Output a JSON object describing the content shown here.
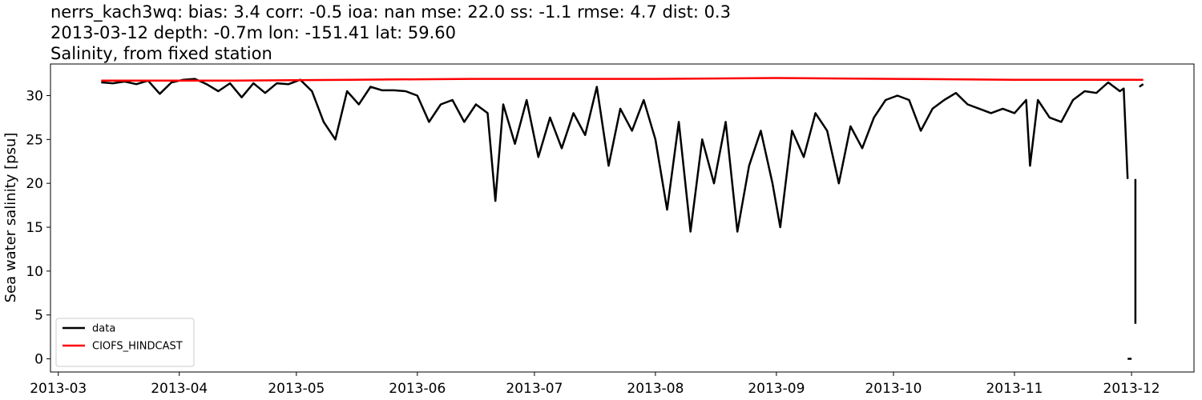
{
  "chart_data": {
    "type": "line",
    "title": [
      "nerrs_kach3wq: bias: 3.4  corr: -0.5  ioa: nan  mse: 22.0  ss: -1.1  rmse: 4.7  dist: 0.3",
      "2013-03-12 depth: -0.7m lon: -151.41 lat: 59.60",
      "Salinity, from fixed station"
    ],
    "ylabel": "Sea water salinity [psu]",
    "xlim": [
      "2013-02-27",
      "2013-12-17"
    ],
    "xticks": [
      "2013-03",
      "2013-04",
      "2013-05",
      "2013-06",
      "2013-07",
      "2013-08",
      "2013-09",
      "2013-10",
      "2013-11",
      "2013-12"
    ],
    "ylim": [
      -1.5,
      33.6
    ],
    "yticks": [
      0,
      5,
      10,
      15,
      20,
      25,
      30
    ],
    "legend": "lower left",
    "grid": false,
    "series": [
      {
        "name": "data",
        "color": "#000000",
        "x": [
          "2013-03-12",
          "2013-03-15",
          "2013-03-18",
          "2013-03-21",
          "2013-03-24",
          "2013-03-27",
          "2013-03-30",
          "2013-04-02",
          "2013-04-05",
          "2013-04-08",
          "2013-04-11",
          "2013-04-14",
          "2013-04-17",
          "2013-04-20",
          "2013-04-23",
          "2013-04-26",
          "2013-04-29",
          "2013-05-02",
          "2013-05-05",
          "2013-05-08",
          "2013-05-11",
          "2013-05-14",
          "2013-05-17",
          "2013-05-20",
          "2013-05-23",
          "2013-05-26",
          "2013-05-29",
          "2013-06-01",
          "2013-06-04",
          "2013-06-07",
          "2013-06-10",
          "2013-06-13",
          "2013-06-16",
          "2013-06-19",
          "2013-06-21",
          "2013-06-23",
          "2013-06-26",
          "2013-06-29",
          "2013-07-02",
          "2013-07-05",
          "2013-07-08",
          "2013-07-11",
          "2013-07-14",
          "2013-07-17",
          "2013-07-20",
          "2013-07-23",
          "2013-07-26",
          "2013-07-29",
          "2013-08-01",
          "2013-08-04",
          "2013-08-07",
          "2013-08-10",
          "2013-08-13",
          "2013-08-16",
          "2013-08-19",
          "2013-08-22",
          "2013-08-25",
          "2013-08-28",
          "2013-08-31",
          "2013-09-02",
          "2013-09-05",
          "2013-09-08",
          "2013-09-11",
          "2013-09-14",
          "2013-09-17",
          "2013-09-20",
          "2013-09-23",
          "2013-09-26",
          "2013-09-29",
          "2013-10-02",
          "2013-10-05",
          "2013-10-08",
          "2013-10-11",
          "2013-10-14",
          "2013-10-17",
          "2013-10-20",
          "2013-10-23",
          "2013-10-26",
          "2013-10-29",
          "2013-11-01",
          "2013-11-04",
          "2013-11-05",
          "2013-11-07",
          "2013-11-10",
          "2013-11-13",
          "2013-11-16",
          "2013-11-19",
          "2013-11-22",
          "2013-11-25",
          "2013-11-28",
          "2013-11-29",
          "2013-11-30",
          "2013-11-30",
          "2013-11-30",
          "2013-12-01",
          "2013-12-01",
          "2013-12-02",
          "2013-12-02",
          "2013-12-02",
          "2013-12-03",
          "2013-12-04"
        ],
        "values": [
          31.5,
          31.4,
          31.6,
          31.3,
          31.7,
          30.2,
          31.5,
          31.8,
          31.9,
          31.3,
          30.5,
          31.4,
          29.8,
          31.4,
          30.3,
          31.4,
          31.3,
          31.8,
          30.5,
          27.0,
          25.0,
          30.5,
          29.0,
          31.0,
          30.6,
          30.6,
          30.5,
          30.0,
          27.0,
          29.0,
          29.5,
          27.0,
          29.0,
          28.0,
          18.0,
          29.0,
          24.5,
          29.5,
          23.0,
          27.5,
          24.0,
          28.0,
          25.5,
          31.0,
          22.0,
          28.5,
          26.0,
          29.5,
          25.0,
          17.0,
          27.0,
          14.5,
          25.0,
          20.0,
          27.0,
          14.5,
          22.0,
          26.0,
          20.0,
          15.0,
          26.0,
          23.0,
          28.0,
          26.0,
          20.0,
          26.5,
          24.0,
          27.5,
          29.5,
          30.0,
          29.5,
          26.0,
          28.5,
          29.5,
          30.3,
          29.0,
          28.5,
          28.0,
          28.5,
          28.0,
          29.5,
          22.0,
          29.5,
          27.5,
          27.0,
          29.5,
          30.5,
          30.3,
          31.5,
          30.5,
          30.8,
          20.5,
          null,
          0,
          0,
          null,
          20.5,
          4.0,
          null,
          31.0,
          31.3
        ]
      },
      {
        "name": "CIOFS_HINDCAST",
        "color": "#ff0000",
        "x": [
          "2013-03-12",
          "2013-04-15",
          "2013-05-15",
          "2013-06-15",
          "2013-08-01",
          "2013-09-01",
          "2013-10-01",
          "2013-11-01",
          "2013-12-04"
        ],
        "values": [
          31.7,
          31.7,
          31.8,
          31.9,
          31.9,
          32.0,
          31.9,
          31.8,
          31.8
        ]
      }
    ]
  }
}
